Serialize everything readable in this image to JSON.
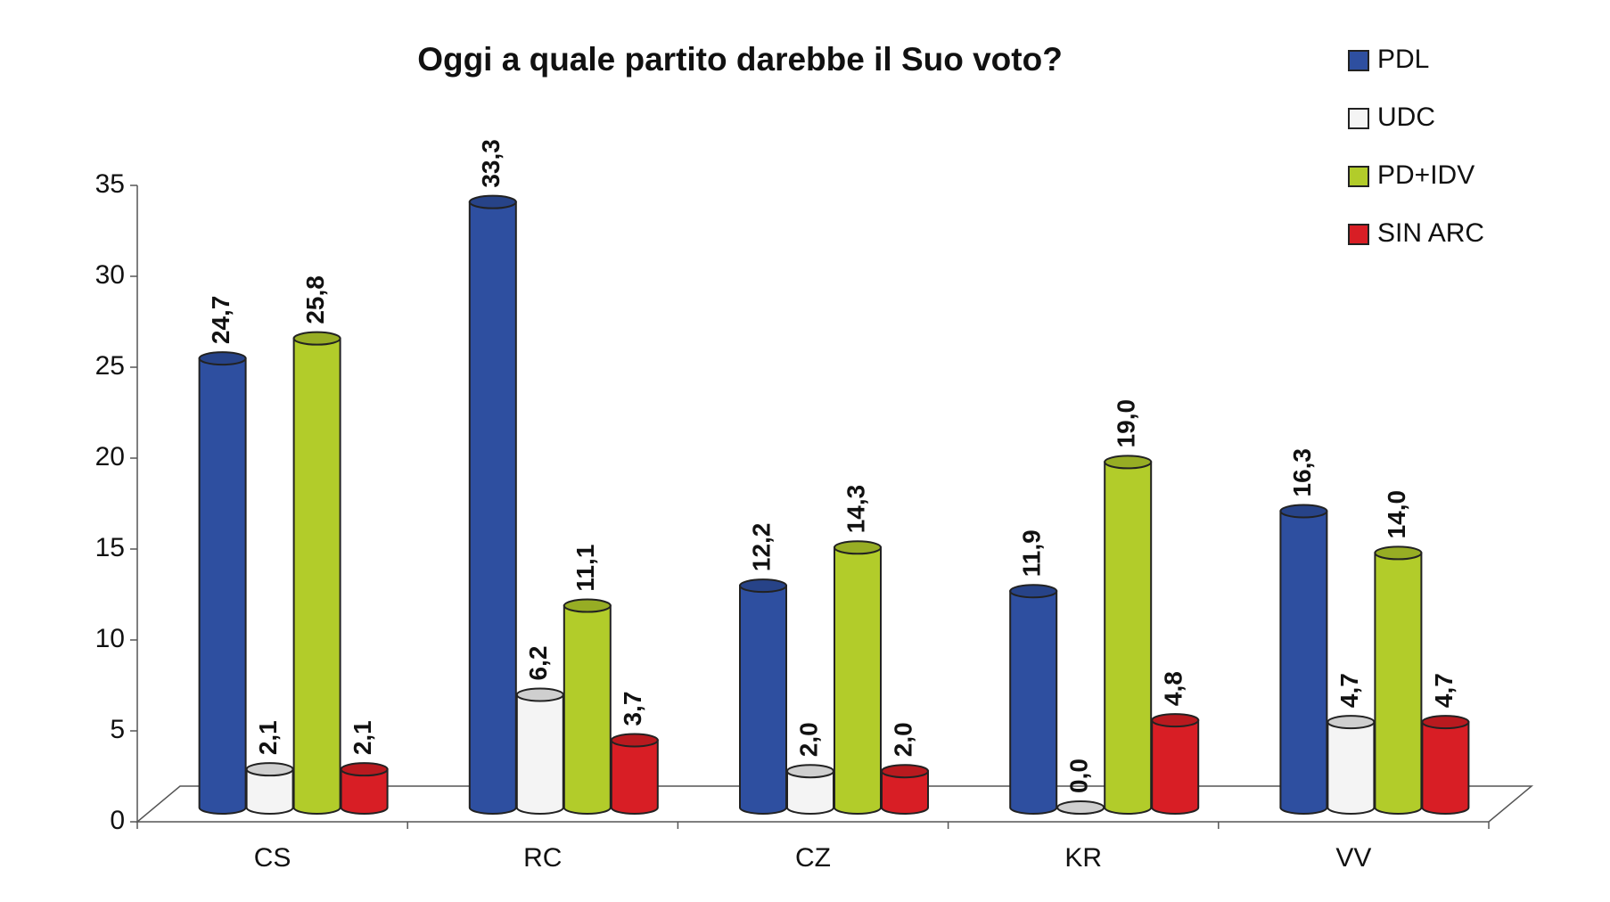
{
  "chart_data": {
    "type": "bar",
    "title": "Oggi a quale partito darebbe il Suo voto?",
    "categories": [
      "CS",
      "RC",
      "CZ",
      "KR",
      "VV"
    ],
    "series": [
      {
        "name": "PDL",
        "color": "#2e4fa0",
        "values": [
          24.7,
          33.3,
          12.2,
          11.9,
          16.3
        ],
        "value_labels": [
          "24,7",
          "33,3",
          "12,2",
          "11,9",
          "16,3"
        ]
      },
      {
        "name": "UDC",
        "color": "#f4f4f4",
        "values": [
          2.1,
          6.2,
          2.0,
          0.0,
          4.7
        ],
        "value_labels": [
          "2,1",
          "6,2",
          "2,0",
          "0,0",
          "4,7"
        ]
      },
      {
        "name": "PD+IDV",
        "color": "#b2cc2a",
        "values": [
          25.8,
          11.1,
          14.3,
          19.0,
          14.0
        ],
        "value_labels": [
          "25,8",
          "11,1",
          "14,3",
          "19,0",
          "14,0"
        ]
      },
      {
        "name": "SIN ARC",
        "color": "#d81e25",
        "values": [
          2.1,
          3.7,
          2.0,
          4.8,
          4.7
        ],
        "value_labels": [
          "2,1",
          "3,7",
          "2,0",
          "4,8",
          "4,7"
        ]
      }
    ],
    "ylim": [
      0,
      35
    ],
    "yticks": [
      0,
      5,
      10,
      15,
      20,
      25,
      30,
      35
    ],
    "legend": "right"
  }
}
